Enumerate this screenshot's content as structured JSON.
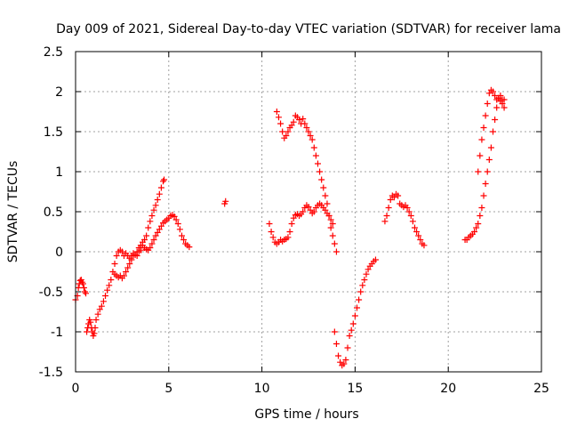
{
  "chart_data": {
    "type": "scatter",
    "title": "Day 009 of 2021, Sidereal Day-to-day VTEC variation (SDTVAR) for receiver lama",
    "xlabel": "GPS time / hours",
    "ylabel": "SDTVAR / TECUs",
    "xlim": [
      0,
      25
    ],
    "ylim": [
      -1.5,
      2.5
    ],
    "x_ticks": [
      "0",
      "5",
      "10",
      "15",
      "20",
      "25"
    ],
    "y_ticks": [
      "2.5",
      "2",
      "1.5",
      "1",
      "0.5",
      "0",
      "-0.5",
      "-1",
      "-1.5"
    ],
    "grid": true,
    "marker": "+",
    "color": "#ff0000",
    "series": [
      {
        "points": [
          [
            0.0,
            -0.6
          ],
          [
            0.1,
            -0.55
          ],
          [
            0.15,
            -0.45
          ],
          [
            0.2,
            -0.4
          ],
          [
            0.25,
            -0.36
          ],
          [
            0.3,
            -0.35
          ],
          [
            0.35,
            -0.38
          ],
          [
            0.4,
            -0.4
          ],
          [
            0.45,
            -0.45
          ],
          [
            0.5,
            -0.5
          ],
          [
            0.55,
            -0.52
          ],
          [
            0.6,
            -1.0
          ],
          [
            0.65,
            -0.95
          ],
          [
            0.7,
            -0.9
          ],
          [
            0.75,
            -0.85
          ],
          [
            0.8,
            -0.88
          ],
          [
            0.85,
            -0.95
          ],
          [
            0.9,
            -1.0
          ],
          [
            0.95,
            -1.05
          ],
          [
            1.0,
            -1.02
          ],
          [
            1.05,
            -0.95
          ],
          [
            1.1,
            -0.85
          ],
          [
            1.2,
            -0.78
          ],
          [
            1.3,
            -0.72
          ],
          [
            1.4,
            -0.68
          ],
          [
            1.5,
            -0.62
          ],
          [
            1.6,
            -0.55
          ],
          [
            1.7,
            -0.48
          ],
          [
            1.8,
            -0.42
          ],
          [
            1.9,
            -0.35
          ],
          [
            2.0,
            -0.25
          ],
          [
            2.1,
            -0.15
          ],
          [
            2.2,
            -0.05
          ],
          [
            2.3,
            0.0
          ],
          [
            2.4,
            0.02
          ],
          [
            2.5,
            0.0
          ],
          [
            2.1,
            -0.28
          ],
          [
            2.2,
            -0.3
          ],
          [
            2.3,
            -0.32
          ],
          [
            2.4,
            -0.3
          ],
          [
            2.5,
            -0.33
          ],
          [
            2.6,
            -0.3
          ],
          [
            2.7,
            -0.25
          ],
          [
            2.8,
            -0.2
          ],
          [
            2.9,
            -0.15
          ],
          [
            3.0,
            -0.1
          ],
          [
            3.1,
            -0.05
          ],
          [
            2.6,
            -0.05
          ],
          [
            2.7,
            -0.02
          ],
          [
            2.8,
            -0.05
          ],
          [
            2.9,
            -0.08
          ],
          [
            3.0,
            -0.05
          ],
          [
            3.1,
            -0.02
          ],
          [
            3.2,
            -0.04
          ],
          [
            3.3,
            -0.05
          ],
          [
            3.4,
            0.0
          ],
          [
            3.5,
            0.02
          ],
          [
            3.3,
            0.0
          ],
          [
            3.4,
            0.05
          ],
          [
            3.5,
            0.08
          ],
          [
            3.6,
            0.12
          ],
          [
            3.7,
            0.15
          ],
          [
            3.8,
            0.2
          ],
          [
            3.9,
            0.3
          ],
          [
            4.0,
            0.38
          ],
          [
            4.1,
            0.45
          ],
          [
            4.2,
            0.52
          ],
          [
            4.3,
            0.58
          ],
          [
            4.4,
            0.65
          ],
          [
            4.5,
            0.72
          ],
          [
            4.6,
            0.8
          ],
          [
            4.7,
            0.88
          ],
          [
            4.75,
            0.9
          ],
          [
            3.5,
            0.05
          ],
          [
            3.6,
            0.08
          ],
          [
            3.7,
            0.05
          ],
          [
            3.8,
            0.03
          ],
          [
            3.9,
            0.02
          ],
          [
            4.0,
            0.05
          ],
          [
            4.1,
            0.1
          ],
          [
            4.2,
            0.15
          ],
          [
            4.3,
            0.2
          ],
          [
            4.4,
            0.24
          ],
          [
            4.5,
            0.28
          ],
          [
            4.6,
            0.32
          ],
          [
            4.7,
            0.36
          ],
          [
            4.8,
            0.38
          ],
          [
            4.9,
            0.4
          ],
          [
            5.0,
            0.42
          ],
          [
            5.1,
            0.45
          ],
          [
            5.2,
            0.46
          ],
          [
            5.3,
            0.44
          ],
          [
            5.4,
            0.4
          ],
          [
            5.5,
            0.35
          ],
          [
            5.6,
            0.28
          ],
          [
            5.7,
            0.2
          ],
          [
            5.8,
            0.15
          ],
          [
            5.9,
            0.1
          ],
          [
            6.0,
            0.08
          ],
          [
            6.1,
            0.06
          ],
          [
            8.0,
            0.6
          ],
          [
            8.05,
            0.63
          ],
          [
            10.4,
            0.35
          ],
          [
            10.5,
            0.25
          ],
          [
            10.6,
            0.18
          ],
          [
            10.7,
            0.12
          ],
          [
            10.8,
            0.1
          ],
          [
            10.9,
            0.12
          ],
          [
            11.0,
            0.15
          ],
          [
            11.1,
            0.13
          ],
          [
            11.2,
            0.15
          ],
          [
            11.3,
            0.16
          ],
          [
            11.4,
            0.18
          ],
          [
            11.5,
            0.25
          ],
          [
            11.6,
            0.35
          ],
          [
            11.7,
            0.42
          ],
          [
            11.8,
            0.46
          ],
          [
            11.9,
            0.47
          ],
          [
            12.0,
            0.45
          ],
          [
            12.1,
            0.47
          ],
          [
            12.2,
            0.5
          ],
          [
            12.3,
            0.55
          ],
          [
            12.4,
            0.58
          ],
          [
            12.5,
            0.56
          ],
          [
            12.6,
            0.52
          ],
          [
            12.7,
            0.48
          ],
          [
            12.8,
            0.5
          ],
          [
            12.9,
            0.55
          ],
          [
            13.0,
            0.58
          ],
          [
            13.1,
            0.6
          ],
          [
            13.2,
            0.58
          ],
          [
            13.3,
            0.55
          ],
          [
            13.4,
            0.52
          ],
          [
            13.5,
            0.48
          ],
          [
            13.6,
            0.45
          ],
          [
            13.7,
            0.4
          ],
          [
            13.8,
            0.35
          ],
          [
            10.8,
            1.75
          ],
          [
            10.9,
            1.68
          ],
          [
            11.0,
            1.6
          ],
          [
            11.1,
            1.5
          ],
          [
            11.2,
            1.42
          ],
          [
            11.3,
            1.45
          ],
          [
            11.4,
            1.5
          ],
          [
            11.5,
            1.55
          ],
          [
            11.6,
            1.58
          ],
          [
            11.7,
            1.62
          ],
          [
            11.8,
            1.7
          ],
          [
            11.9,
            1.68
          ],
          [
            12.0,
            1.65
          ],
          [
            12.1,
            1.6
          ],
          [
            12.2,
            1.66
          ],
          [
            12.3,
            1.6
          ],
          [
            12.4,
            1.55
          ],
          [
            12.5,
            1.5
          ],
          [
            12.6,
            1.45
          ],
          [
            12.7,
            1.4
          ],
          [
            12.8,
            1.3
          ],
          [
            12.9,
            1.2
          ],
          [
            13.0,
            1.1
          ],
          [
            13.1,
            1.0
          ],
          [
            13.2,
            0.9
          ],
          [
            13.3,
            0.8
          ],
          [
            13.4,
            0.7
          ],
          [
            13.5,
            0.6
          ],
          [
            13.6,
            0.45
          ],
          [
            13.7,
            0.3
          ],
          [
            13.8,
            0.2
          ],
          [
            13.9,
            0.1
          ],
          [
            14.0,
            0.0
          ],
          [
            13.9,
            -1.0
          ],
          [
            14.0,
            -1.15
          ],
          [
            14.1,
            -1.3
          ],
          [
            14.2,
            -1.38
          ],
          [
            14.3,
            -1.42
          ],
          [
            14.4,
            -1.4
          ],
          [
            14.5,
            -1.35
          ],
          [
            14.6,
            -1.2
          ],
          [
            14.7,
            -1.05
          ],
          [
            14.8,
            -0.98
          ],
          [
            14.9,
            -0.9
          ],
          [
            15.0,
            -0.8
          ],
          [
            15.1,
            -0.7
          ],
          [
            15.2,
            -0.6
          ],
          [
            15.3,
            -0.5
          ],
          [
            15.4,
            -0.42
          ],
          [
            15.5,
            -0.35
          ],
          [
            15.6,
            -0.28
          ],
          [
            15.7,
            -0.22
          ],
          [
            15.8,
            -0.18
          ],
          [
            15.9,
            -0.15
          ],
          [
            16.0,
            -0.12
          ],
          [
            16.1,
            -0.1
          ],
          [
            16.6,
            0.38
          ],
          [
            16.7,
            0.45
          ],
          [
            16.8,
            0.55
          ],
          [
            16.9,
            0.65
          ],
          [
            17.0,
            0.7
          ],
          [
            17.1,
            0.68
          ],
          [
            17.2,
            0.72
          ],
          [
            17.3,
            0.7
          ],
          [
            17.4,
            0.6
          ],
          [
            17.5,
            0.58
          ],
          [
            17.6,
            0.56
          ],
          [
            17.7,
            0.58
          ],
          [
            17.8,
            0.55
          ],
          [
            17.9,
            0.5
          ],
          [
            18.0,
            0.45
          ],
          [
            18.1,
            0.38
          ],
          [
            18.2,
            0.3
          ],
          [
            18.3,
            0.25
          ],
          [
            18.4,
            0.2
          ],
          [
            18.5,
            0.15
          ],
          [
            18.6,
            0.1
          ],
          [
            18.7,
            0.08
          ],
          [
            20.9,
            0.15
          ],
          [
            21.0,
            0.15
          ],
          [
            21.1,
            0.18
          ],
          [
            21.2,
            0.2
          ],
          [
            21.3,
            0.22
          ],
          [
            21.4,
            0.25
          ],
          [
            21.5,
            0.3
          ],
          [
            21.6,
            0.35
          ],
          [
            21.7,
            0.45
          ],
          [
            21.8,
            0.55
          ],
          [
            21.9,
            0.7
          ],
          [
            22.0,
            0.85
          ],
          [
            22.1,
            1.0
          ],
          [
            22.2,
            1.15
          ],
          [
            22.3,
            1.3
          ],
          [
            22.4,
            1.5
          ],
          [
            22.5,
            1.65
          ],
          [
            22.6,
            1.8
          ],
          [
            22.7,
            1.92
          ],
          [
            22.8,
            1.95
          ],
          [
            22.9,
            1.9
          ],
          [
            23.0,
            1.8
          ],
          [
            21.6,
            1.0
          ],
          [
            21.7,
            1.2
          ],
          [
            21.8,
            1.4
          ],
          [
            21.9,
            1.55
          ],
          [
            22.0,
            1.7
          ],
          [
            22.1,
            1.85
          ],
          [
            22.2,
            1.98
          ],
          [
            22.3,
            2.02
          ],
          [
            22.4,
            2.0
          ],
          [
            22.5,
            1.95
          ],
          [
            22.6,
            1.9
          ],
          [
            22.7,
            1.92
          ],
          [
            22.8,
            1.88
          ],
          [
            22.9,
            1.85
          ],
          [
            23.0,
            1.9
          ]
        ]
      }
    ]
  }
}
